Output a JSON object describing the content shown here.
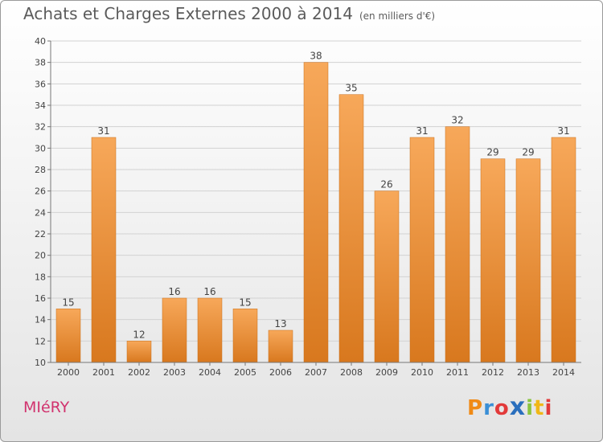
{
  "header": {
    "title": "Achats et Charges Externes 2000 à 2014",
    "subtitle": "(en milliers d'€)"
  },
  "footer": {
    "commune": "MIéRY",
    "logo_letters": [
      "P",
      "r",
      "o",
      "x",
      "i",
      "t",
      "i"
    ],
    "logo_colors": [
      "#f08a16",
      "#3a8fd6",
      "#e23a3a",
      "#2a6fbd",
      "#8ac43f",
      "#f0b716",
      "#e23a3a"
    ]
  },
  "chart_data": {
    "type": "bar",
    "title": "Achats et Charges Externes 2000 à 2014",
    "subtitle": "(en milliers d'€)",
    "categories": [
      "2000",
      "2001",
      "2002",
      "2003",
      "2004",
      "2005",
      "2006",
      "2007",
      "2008",
      "2009",
      "2010",
      "2011",
      "2012",
      "2013",
      "2014"
    ],
    "values": [
      15,
      31,
      12,
      16,
      16,
      15,
      13,
      38,
      35,
      26,
      31,
      32,
      29,
      29,
      31
    ],
    "ylim": [
      10,
      40
    ],
    "yticks": [
      10,
      12,
      14,
      16,
      18,
      20,
      22,
      24,
      26,
      28,
      30,
      32,
      34,
      36,
      38,
      40
    ],
    "grid": true,
    "bar_color": "#f0963a",
    "bar_color_light": "#f7a85a",
    "bar_color_dark": "#d8781e"
  }
}
